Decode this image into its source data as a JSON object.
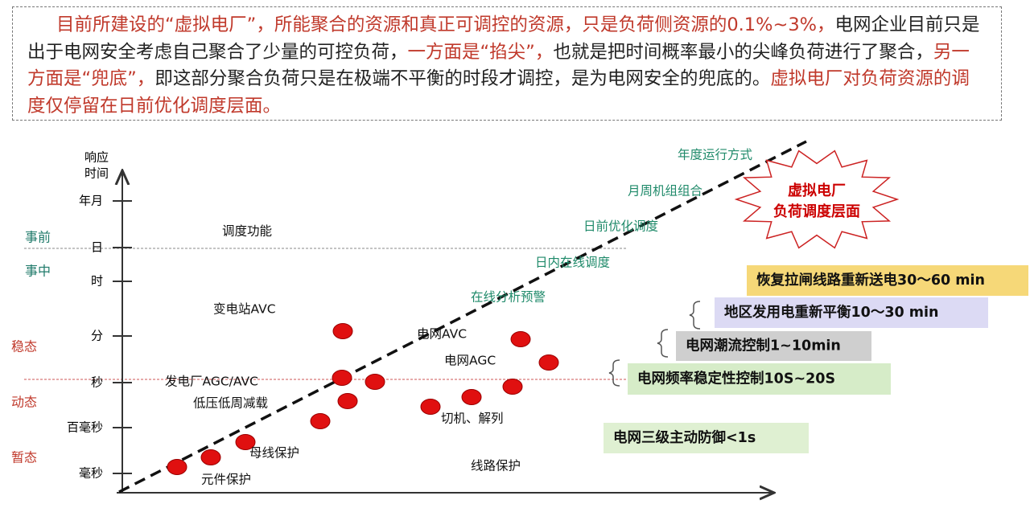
{
  "intro": {
    "segments": [
      {
        "text": "目前所建设的“虚拟电厂”，所能聚合的资源和真正可调控的资源，只是负荷侧资源的0.1%~3%，",
        "color": "#c0392b"
      },
      {
        "text": "电网企业目前只是出于电网安全考虑自己聚合了少量的可控负荷，",
        "color": "#222222"
      },
      {
        "text": "一方面是“掐尖”，",
        "color": "#c0392b"
      },
      {
        "text": "也就是把时间概率最小的尖峰负荷进行了聚合，",
        "color": "#222222"
      },
      {
        "text": "另一方面是“兜底”，",
        "color": "#c0392b"
      },
      {
        "text": "即这部分聚合负荷只是在极端不平衡的时段才调控，是为电网安全的兜底的。",
        "color": "#222222"
      },
      {
        "text": "虚拟电厂对负荷资源的调度仅停留在日前优化调度层面。",
        "color": "#c0392b"
      }
    ]
  },
  "axis": {
    "title": [
      "响应",
      "时间"
    ],
    "ticks": [
      "年月",
      "日",
      "时",
      "分",
      "秒",
      "百毫秒",
      "毫秒"
    ]
  },
  "phases": [
    {
      "label": "事前",
      "color": "#1f7a6a"
    },
    {
      "label": "事中",
      "color": "#1f7a6a"
    },
    {
      "label": "稳态",
      "color": "#c0392b"
    },
    {
      "label": "动态",
      "color": "#c0392b"
    },
    {
      "label": "暂态",
      "color": "#c0392b"
    }
  ],
  "functions": [
    "调度功能",
    "变电站AVC",
    "发电厂AGC/AVC",
    "低压低周减载",
    "母线保护",
    "元件保护",
    "电网AVC",
    "电网AGC",
    "切机、解列",
    "线路保护"
  ],
  "trend_labels": {
    "color": "#1f8a6a",
    "items": [
      "年度运行方式",
      "月周机组组合",
      "日前优化调度",
      "日内在线调度",
      "在线分析预警"
    ]
  },
  "callout": {
    "lines": [
      "虚拟电厂",
      "负荷调度层面"
    ],
    "color": "#cc0000"
  },
  "boxes": [
    {
      "label": "恢复拉闸线路重新送电30～60 min",
      "color": "#f6d878"
    },
    {
      "label": "地区发用电重新平衡10～30 min",
      "color": "#dcdaf4"
    },
    {
      "label": "电网潮流控制1~10min",
      "color": "#cfcfcf"
    },
    {
      "label": "电网频率稳定性控制10S~20S",
      "color": "#d6ecc8"
    },
    {
      "label": "电网三级主动防御<1s",
      "color": "#dff0d2"
    }
  ]
}
